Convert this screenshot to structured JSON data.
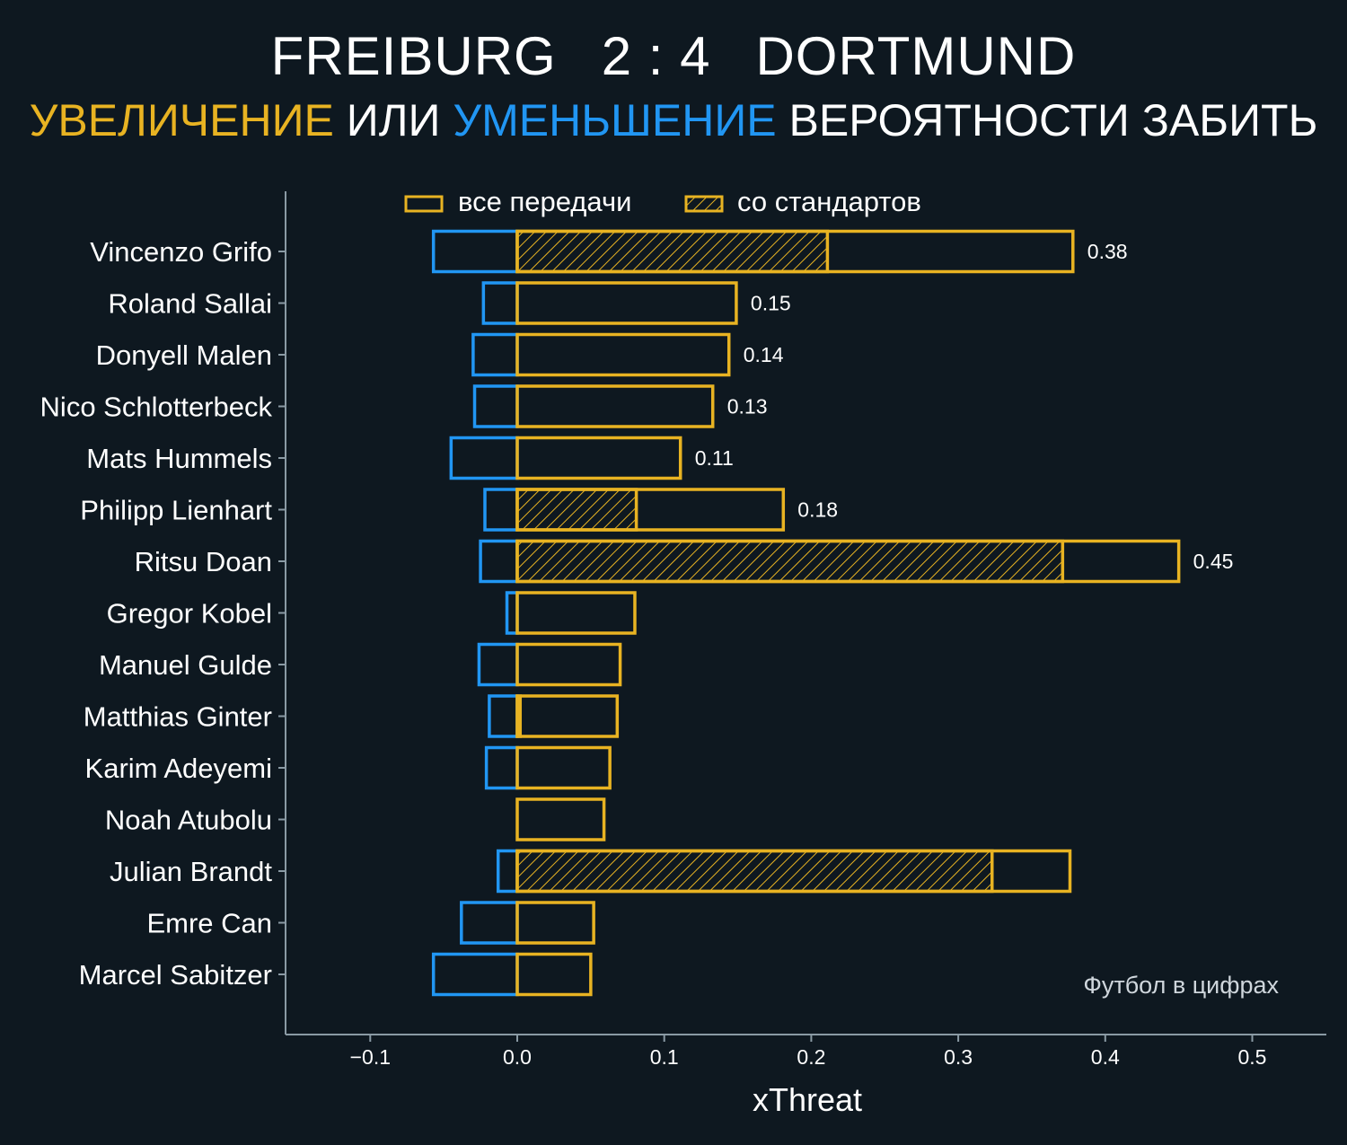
{
  "header": {
    "home_team": "FREIBURG",
    "score": "2 : 4",
    "away_team": "DORTMUND",
    "subtitle_increase": "УВЕЛИЧЕНИЕ",
    "subtitle_or": "ИЛИ",
    "subtitle_decrease": "УМЕНЬШЕНИЕ",
    "subtitle_rest": "ВЕРОЯТНОСТИ ЗАБИТЬ"
  },
  "colors": {
    "background": "#0e1820",
    "increase": "#e8b322",
    "decrease": "#2196f3",
    "axis": "#8a9aa4"
  },
  "credit": "Футбол в цифрах",
  "chart_data": {
    "type": "bar",
    "orientation": "horizontal",
    "xlabel": "xThreat",
    "xlim": [
      -0.157,
      0.55
    ],
    "xticks": [
      -0.1,
      0.0,
      0.1,
      0.2,
      0.3,
      0.4,
      0.5
    ],
    "xtick_labels": [
      "−0.1",
      "0.0",
      "0.1",
      "0.2",
      "0.3",
      "0.4",
      "0.5"
    ],
    "legend": {
      "all_passes": "все передачи",
      "set_pieces": "со стандартов",
      "placement": "top-center"
    },
    "categories": [
      "Vincenzo Grifo",
      "Roland Sallai",
      "Donyell Malen",
      "Nico Schlotterbeck",
      "Mats Hummels",
      "Philipp Lienhart",
      "Ritsu Doan",
      "Gregor Kobel",
      "Manuel Gulde",
      "Matthias Ginter",
      "Karim Adeyemi",
      "Noah Atubolu",
      "Julian Brandt",
      "Emre Can",
      "Marcel Sabitzer"
    ],
    "series": [
      {
        "name": "все передачи (увеличение)",
        "values": [
          0.378,
          0.149,
          0.144,
          0.133,
          0.111,
          0.181,
          0.45,
          0.08,
          0.07,
          0.068,
          0.063,
          0.059,
          0.376,
          0.052,
          0.05
        ]
      },
      {
        "name": "со стандартов",
        "values": [
          0.211,
          0,
          0,
          0,
          0,
          0.081,
          0.371,
          0,
          0,
          0.002,
          0,
          0,
          0.323,
          0,
          0
        ]
      },
      {
        "name": "уменьшение",
        "values": [
          -0.057,
          -0.023,
          -0.03,
          -0.029,
          -0.045,
          -0.022,
          -0.025,
          -0.007,
          -0.026,
          -0.019,
          -0.021,
          0,
          -0.013,
          -0.038,
          -0.057
        ]
      }
    ],
    "data_labels": [
      "0.38",
      "0.15",
      "0.14",
      "0.13",
      "0.11",
      "0.18",
      "0.45",
      "",
      "",
      "",
      "",
      "",
      "",
      "",
      ""
    ]
  }
}
